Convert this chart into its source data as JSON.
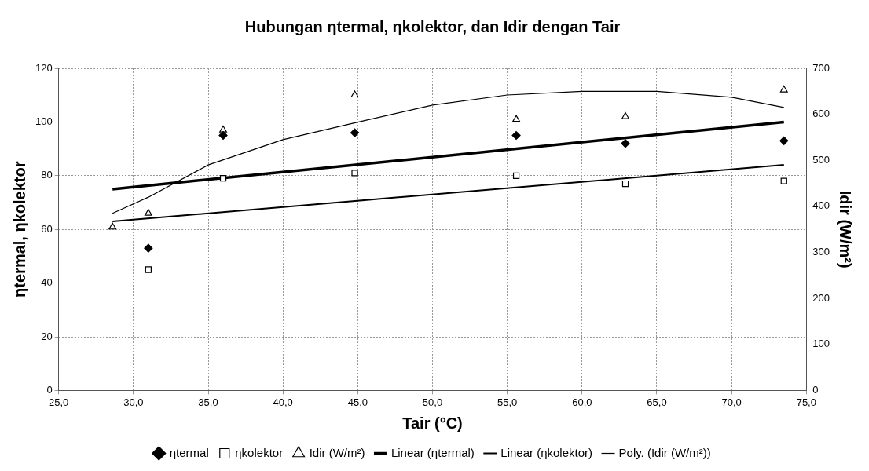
{
  "chart_data": {
    "type": "scatter",
    "title": "Hubungan ηtermal, ηkolektor, dan Idir dengan Tair",
    "xlabel": "Tair (°C)",
    "ylabel": "ηtermal, ηkolektor",
    "y2label": "Idir (W/m²)",
    "x": [
      28.6,
      31.0,
      36.0,
      44.8,
      55.6,
      62.9,
      73.5
    ],
    "series": [
      {
        "name": "ηtermal",
        "marker": "diamond",
        "color": "#000000",
        "values": [
          null,
          53,
          95,
          96,
          95,
          92,
          93
        ]
      },
      {
        "name": "ηkolektor",
        "marker": "square",
        "color": "#000000",
        "values": [
          null,
          45,
          79,
          81,
          80,
          77,
          78
        ]
      },
      {
        "name": "Idir (W/m²)",
        "marker": "triangle",
        "axis": "y2",
        "color": "#000000",
        "values": [
          355,
          385,
          566,
          642,
          589,
          595,
          653
        ]
      },
      {
        "name": "Linear (ηtermal)",
        "type": "line",
        "marker": "none",
        "color": "#000000",
        "x": [
          28.6,
          73.5
        ],
        "values": [
          75,
          100
        ]
      },
      {
        "name": "Linear (ηkolektor)",
        "type": "line",
        "marker": "none",
        "color": "#000000",
        "x": [
          28.6,
          73.5
        ],
        "values": [
          63,
          84
        ]
      },
      {
        "name": "Poly. (Idir (W/m²))",
        "type": "line",
        "marker": "none",
        "axis": "y2",
        "color": "#000000",
        "x": [
          28.6,
          31,
          35,
          40,
          45,
          50,
          55,
          60,
          65,
          70,
          73.5
        ],
        "values": [
          385,
          420,
          490,
          545,
          583,
          620,
          642,
          650,
          650,
          637,
          615
        ]
      }
    ],
    "xlim": [
      25,
      75
    ],
    "xticks": [
      {
        "value": 25,
        "label": "25,0"
      },
      {
        "value": 30,
        "label": "30,0"
      },
      {
        "value": 35,
        "label": "35,0"
      },
      {
        "value": 40,
        "label": "40,0"
      },
      {
        "value": 45,
        "label": "45,0"
      },
      {
        "value": 50,
        "label": "50,0"
      },
      {
        "value": 55,
        "label": "55,0"
      },
      {
        "value": 60,
        "label": "60,0"
      },
      {
        "value": 65,
        "label": "65,0"
      },
      {
        "value": 70,
        "label": "70,0"
      },
      {
        "value": 75,
        "label": "75,0"
      }
    ],
    "ylim": [
      0,
      120
    ],
    "yticks": [
      0,
      20,
      40,
      60,
      80,
      100,
      120
    ],
    "y2lim": [
      0,
      700
    ],
    "y2ticks": [
      0,
      100,
      200,
      300,
      400,
      500,
      600,
      700
    ],
    "grid": true,
    "legend": "bottom",
    "line_style": "solid"
  }
}
